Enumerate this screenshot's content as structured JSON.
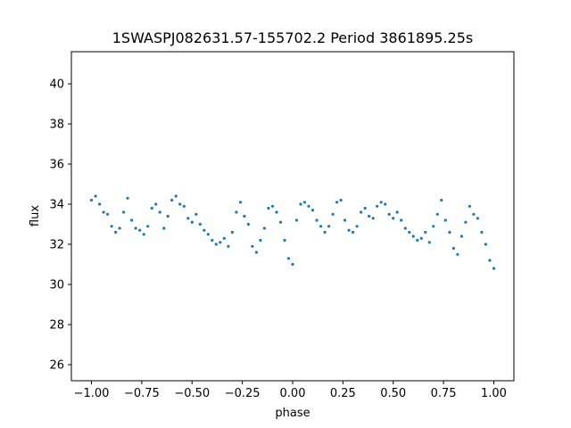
{
  "chart_data": {
    "type": "scatter",
    "title": "1SWASPJ082631.57-155702.2 Period 3861895.25s",
    "xlabel": "phase",
    "ylabel": "flux",
    "xlim": [
      -1.1,
      1.1
    ],
    "ylim": [
      25.2,
      41.6
    ],
    "x_ticks": [
      -1.0,
      -0.75,
      -0.5,
      -0.25,
      0.0,
      0.25,
      0.5,
      0.75,
      1.0
    ],
    "x_tick_labels": [
      "−1.00",
      "−0.75",
      "−0.50",
      "−0.25",
      "0.00",
      "0.25",
      "0.50",
      "0.75",
      "1.00"
    ],
    "y_ticks": [
      26,
      28,
      30,
      32,
      34,
      36,
      38,
      40
    ],
    "y_tick_labels": [
      "26",
      "28",
      "30",
      "32",
      "34",
      "36",
      "38",
      "40"
    ],
    "grid": false,
    "legend": "none",
    "marker_color": "#1f77b4",
    "series": [
      {
        "x": [
          -1.0,
          -0.98,
          -0.96,
          -0.94,
          -0.92,
          -0.9,
          -0.88,
          -0.86,
          -0.84,
          -0.82,
          -0.8,
          -0.78,
          -0.76,
          -0.74,
          -0.72,
          -0.7,
          -0.68,
          -0.66,
          -0.64,
          -0.62,
          -0.6,
          -0.58,
          -0.56,
          -0.54,
          -0.52,
          -0.5,
          -0.48,
          -0.46,
          -0.44,
          -0.42,
          -0.4,
          -0.38,
          -0.36,
          -0.34,
          -0.32,
          -0.3,
          -0.28,
          -0.26,
          -0.24,
          -0.22,
          -0.2,
          -0.18,
          -0.16,
          -0.14,
          -0.12,
          -0.1,
          -0.08,
          -0.06,
          -0.04,
          -0.02,
          0.0,
          0.02,
          0.04,
          0.06,
          0.08,
          0.1,
          0.12,
          0.14,
          0.16,
          0.18,
          0.2,
          0.22,
          0.24,
          0.26,
          0.28,
          0.3,
          0.32,
          0.34,
          0.36,
          0.38,
          0.4,
          0.42,
          0.44,
          0.46,
          0.48,
          0.5,
          0.52,
          0.54,
          0.56,
          0.58,
          0.6,
          0.62,
          0.64,
          0.66,
          0.68,
          0.7,
          0.72,
          0.74,
          0.76,
          0.78,
          0.8,
          0.82,
          0.84,
          0.86,
          0.88,
          0.9,
          0.92,
          0.94,
          0.96,
          0.98,
          1.0
        ],
        "y": [
          34.2,
          34.4,
          34.0,
          33.6,
          33.5,
          32.9,
          32.6,
          32.8,
          33.6,
          34.3,
          33.2,
          32.8,
          32.7,
          32.5,
          32.9,
          33.8,
          34.0,
          33.6,
          32.8,
          33.4,
          34.2,
          34.4,
          34.0,
          33.9,
          33.3,
          33.1,
          33.5,
          33.0,
          32.7,
          32.5,
          32.2,
          32.0,
          32.1,
          32.3,
          31.9,
          32.6,
          33.6,
          34.1,
          33.4,
          33.0,
          31.9,
          31.6,
          32.2,
          32.8,
          33.8,
          33.9,
          33.6,
          33.1,
          32.2,
          31.3,
          31.0,
          33.2,
          34.0,
          34.1,
          33.9,
          33.7,
          33.2,
          32.9,
          32.6,
          32.9,
          33.5,
          34.1,
          34.2,
          33.2,
          32.7,
          32.6,
          32.9,
          33.6,
          33.8,
          33.4,
          33.3,
          33.9,
          34.1,
          34.0,
          33.5,
          33.3,
          33.6,
          33.2,
          32.8,
          32.6,
          32.4,
          32.2,
          32.3,
          32.6,
          32.1,
          32.9,
          33.5,
          34.2,
          33.2,
          32.6,
          31.8,
          31.5,
          32.4,
          33.1,
          33.9,
          33.5,
          33.3,
          32.6,
          32.0,
          31.2,
          30.8
        ]
      }
    ]
  }
}
